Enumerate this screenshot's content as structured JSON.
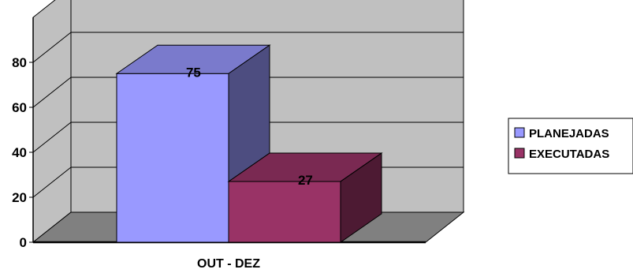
{
  "chart_data": {
    "type": "bar",
    "categories": [
      "OUT - DEZ"
    ],
    "series": [
      {
        "name": "PLANEJADAS",
        "values": [
          75
        ],
        "color": "#9999ff"
      },
      {
        "name": "EXECUTADAS",
        "values": [
          27
        ],
        "color": "#993366"
      }
    ],
    "yticks": [
      0,
      20,
      40,
      60,
      80
    ],
    "ylim": [
      0,
      100
    ],
    "grid": true,
    "legend": "right",
    "style": "3d"
  }
}
